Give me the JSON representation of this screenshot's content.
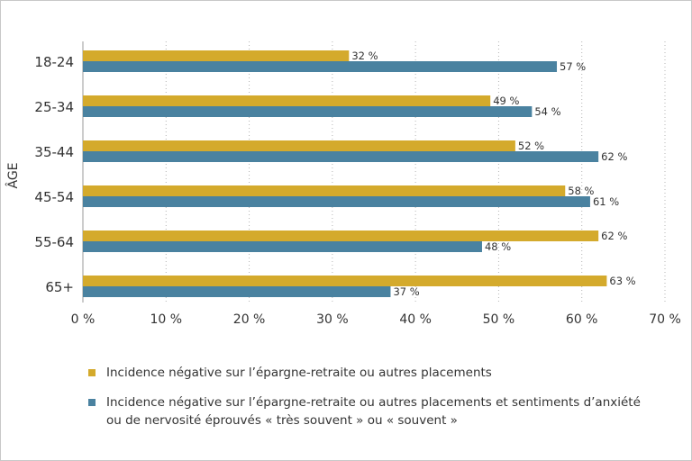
{
  "chart_data": {
    "type": "bar",
    "orientation": "horizontal",
    "title": "",
    "ylabel": "ÂGE",
    "xlabel": "",
    "categories": [
      "18-24",
      "25-34",
      "35-44",
      "45-54",
      "55-64",
      "65+"
    ],
    "series": [
      {
        "name": "Incidence négative sur l’épargne-retraite ou autres placements",
        "color": "#d4aa2c",
        "values": [
          32,
          49,
          52,
          58,
          62,
          63
        ],
        "labels": [
          "32 %",
          "49 %",
          "52 %",
          "58 %",
          "62 %",
          "63 %"
        ]
      },
      {
        "name": "Incidence négative sur l’épargne-retraite ou autres placements et sentiments d’anxiété ou de nervosité éprouvés « très souvent » ou « souvent »",
        "color": "#4a82a0",
        "values": [
          57,
          54,
          62,
          61,
          48,
          37
        ],
        "labels": [
          "57 %",
          "54 %",
          "62 %",
          "61 %",
          "48 %",
          "37 %"
        ]
      }
    ],
    "xlim": [
      0,
      70
    ],
    "xticks": [
      0,
      10,
      20,
      30,
      40,
      50,
      60,
      70
    ],
    "xtick_labels": [
      "0 %",
      "10 %",
      "20 %",
      "30 %",
      "40 %",
      "50 %",
      "60 %",
      "70 %"
    ],
    "grid": "vertical-dotted",
    "legend_position": "bottom"
  },
  "legend": {
    "items": [
      {
        "line1": "Incidence négative sur l’épargne-retraite ou autres placements",
        "line2": ""
      },
      {
        "line1": "Incidence négative sur l’épargne-retraite ou autres placements et sentiments d’anxiété",
        "line2": "ou de nervosité éprouvés « très souvent » ou « souvent »"
      }
    ]
  }
}
